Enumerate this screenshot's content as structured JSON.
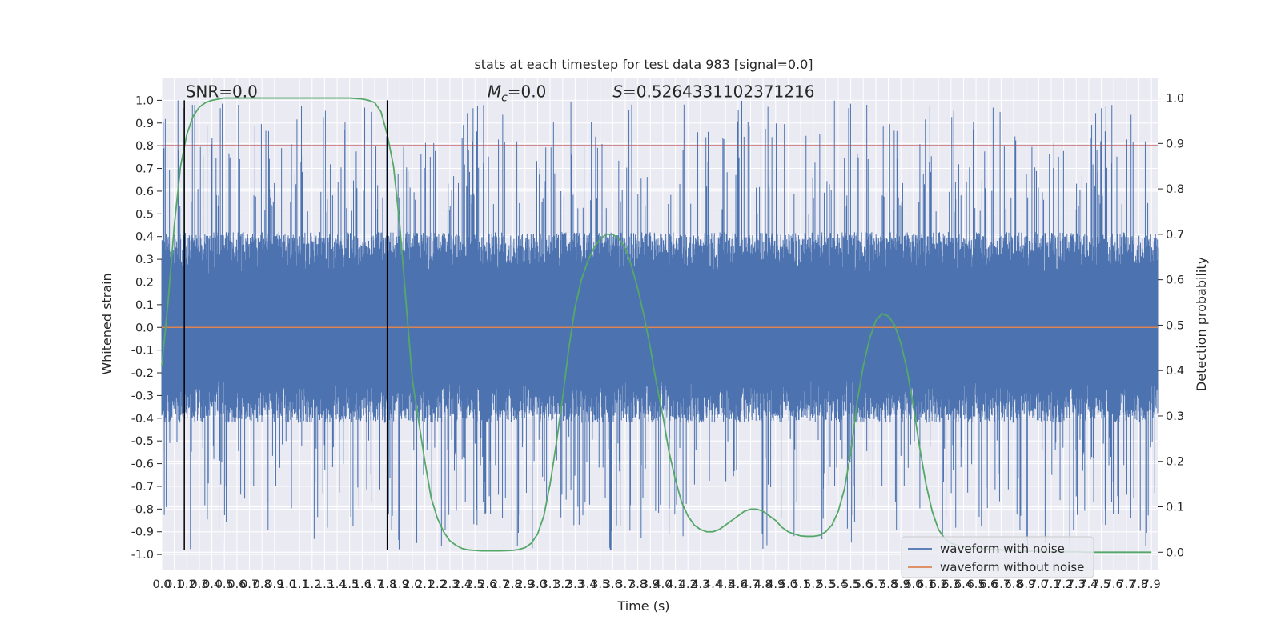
{
  "chart_data": {
    "type": "line",
    "title": "stats at each timestep for test data 983 [signal=0.0]",
    "xlabel": "Time (s)",
    "ylabel": "Whitened strain",
    "y2label": "Detection probability",
    "xlim": [
      0.0,
      7.95
    ],
    "ylim": [
      -1.07,
      1.1
    ],
    "y2lim": [
      -0.04,
      1.045
    ],
    "x_ticks": [
      0.0,
      0.1,
      0.2,
      0.3,
      0.4,
      0.5,
      0.6,
      0.7,
      0.8,
      0.9,
      1.0,
      1.1,
      1.2,
      1.3,
      1.4,
      1.5,
      1.6,
      1.7,
      1.8,
      1.9,
      2.0,
      2.1,
      2.2,
      2.3,
      2.4,
      2.5,
      2.6,
      2.7,
      2.8,
      2.9,
      3.0,
      3.1,
      3.2,
      3.3,
      3.4,
      3.5,
      3.6,
      3.7,
      3.8,
      3.9,
      4.0,
      4.1,
      4.2,
      4.3,
      4.4,
      4.5,
      4.6,
      4.7,
      4.8,
      4.9,
      5.0,
      5.1,
      5.2,
      5.3,
      5.4,
      5.5,
      5.6,
      5.7,
      5.8,
      5.9,
      6.0,
      6.1,
      6.2,
      6.3,
      6.4,
      6.5,
      6.6,
      6.7,
      6.8,
      6.9,
      7.0,
      7.1,
      7.2,
      7.3,
      7.4,
      7.5,
      7.6,
      7.7,
      7.8,
      7.9
    ],
    "y_ticks": [
      -1.0,
      -0.9,
      -0.8,
      -0.7,
      -0.6,
      -0.5,
      -0.4,
      -0.3,
      -0.2,
      -0.1,
      0.0,
      0.1,
      0.2,
      0.3,
      0.4,
      0.5,
      0.6,
      0.7,
      0.8,
      0.9,
      1.0
    ],
    "y2_ticks": [
      0.0,
      0.1,
      0.2,
      0.3,
      0.4,
      0.5,
      0.6,
      0.7,
      0.8,
      0.9,
      1.0
    ],
    "annotations": [
      {
        "text": "SNR=0.0",
        "x": 0.19,
        "y": 1.02
      },
      {
        "text": "Mc=0.0",
        "x": 2.6,
        "y": 1.02
      },
      {
        "text": "S=0.5264331102371216",
        "x": 3.6,
        "y": 1.02
      }
    ],
    "vlines": [
      {
        "x": 0.18,
        "y0": -0.98,
        "y1": 1.0,
        "color": "#000000"
      },
      {
        "x": 1.8,
        "y0": -0.98,
        "y1": 1.0,
        "color": "#000000"
      }
    ],
    "hline": {
      "y": 0.8,
      "color": "#c44e52"
    },
    "series": [
      {
        "name": "waveform with noise",
        "color": "#4c72b0",
        "axis": "left",
        "kind": "dense noise, amplitude mostly within ±0.4, peaks to about ±1.0"
      },
      {
        "name": "waveform without noise",
        "color": "#dd8452",
        "axis": "left",
        "x": [
          0.0,
          7.95
        ],
        "y": [
          0.0,
          0.0
        ]
      },
      {
        "axis": "right",
        "color": "#55a868",
        "x": [
          0.0,
          0.05,
          0.1,
          0.15,
          0.2,
          0.25,
          0.3,
          0.35,
          0.4,
          0.5,
          0.6,
          0.7,
          0.8,
          0.9,
          1.0,
          1.1,
          1.2,
          1.3,
          1.4,
          1.5,
          1.6,
          1.65,
          1.7,
          1.75,
          1.8,
          1.85,
          1.9,
          1.95,
          2.0,
          2.1,
          2.15,
          2.2,
          2.25,
          2.3,
          2.35,
          2.4,
          2.45,
          2.5,
          2.55,
          2.6,
          2.7,
          2.8,
          2.85,
          2.9,
          2.95,
          3.0,
          3.05,
          3.1,
          3.15,
          3.2,
          3.25,
          3.3,
          3.35,
          3.4,
          3.45,
          3.5,
          3.55,
          3.6,
          3.65,
          3.7,
          3.75,
          3.8,
          3.85,
          3.9,
          3.95,
          4.0,
          4.05,
          4.1,
          4.15,
          4.2,
          4.25,
          4.3,
          4.35,
          4.4,
          4.45,
          4.5,
          4.55,
          4.6,
          4.65,
          4.7,
          4.75,
          4.8,
          4.85,
          4.9,
          4.95,
          5.0,
          5.05,
          5.1,
          5.15,
          5.2,
          5.25,
          5.3,
          5.35,
          5.4,
          5.45,
          5.5,
          5.55,
          5.6,
          5.65,
          5.7,
          5.75,
          5.8,
          5.85,
          5.9,
          5.95,
          6.0,
          6.05,
          6.1,
          6.15,
          6.2,
          6.25,
          6.3,
          6.35,
          6.4,
          6.45,
          6.5,
          6.55,
          6.6,
          6.65,
          6.7,
          6.75,
          6.8,
          6.85,
          6.9,
          6.95,
          7.0,
          7.05,
          7.1,
          7.15,
          7.2,
          7.3,
          7.4,
          7.5,
          7.6,
          7.7,
          7.8,
          7.9
        ],
        "y": [
          0.41,
          0.55,
          0.72,
          0.85,
          0.92,
          0.96,
          0.98,
          0.99,
          0.995,
          1.0,
          1.0,
          1.0,
          1.0,
          1.0,
          1.0,
          1.0,
          1.0,
          1.0,
          1.0,
          1.0,
          0.998,
          0.995,
          0.99,
          0.97,
          0.92,
          0.85,
          0.72,
          0.55,
          0.38,
          0.2,
          0.12,
          0.075,
          0.045,
          0.025,
          0.015,
          0.008,
          0.005,
          0.004,
          0.003,
          0.003,
          0.003,
          0.004,
          0.006,
          0.01,
          0.02,
          0.04,
          0.08,
          0.15,
          0.24,
          0.34,
          0.45,
          0.54,
          0.6,
          0.64,
          0.67,
          0.69,
          0.7,
          0.7,
          0.69,
          0.67,
          0.63,
          0.58,
          0.52,
          0.45,
          0.37,
          0.3,
          0.22,
          0.16,
          0.11,
          0.08,
          0.06,
          0.05,
          0.045,
          0.045,
          0.05,
          0.06,
          0.07,
          0.08,
          0.09,
          0.095,
          0.095,
          0.09,
          0.08,
          0.07,
          0.055,
          0.045,
          0.04,
          0.036,
          0.035,
          0.035,
          0.037,
          0.045,
          0.06,
          0.09,
          0.14,
          0.22,
          0.33,
          0.41,
          0.47,
          0.51,
          0.525,
          0.52,
          0.5,
          0.46,
          0.4,
          0.32,
          0.23,
          0.15,
          0.09,
          0.05,
          0.03,
          0.02,
          0.015,
          0.012,
          0.01,
          0.009,
          0.008,
          0.007,
          0.006,
          0.005,
          0.004,
          0.003,
          0.003,
          0.002,
          0.002,
          0.002,
          0.001,
          0.001,
          0.001,
          0.001,
          0.001,
          0.0,
          0.0,
          0.0,
          0.0,
          0.0,
          0.0
        ]
      }
    ]
  }
}
